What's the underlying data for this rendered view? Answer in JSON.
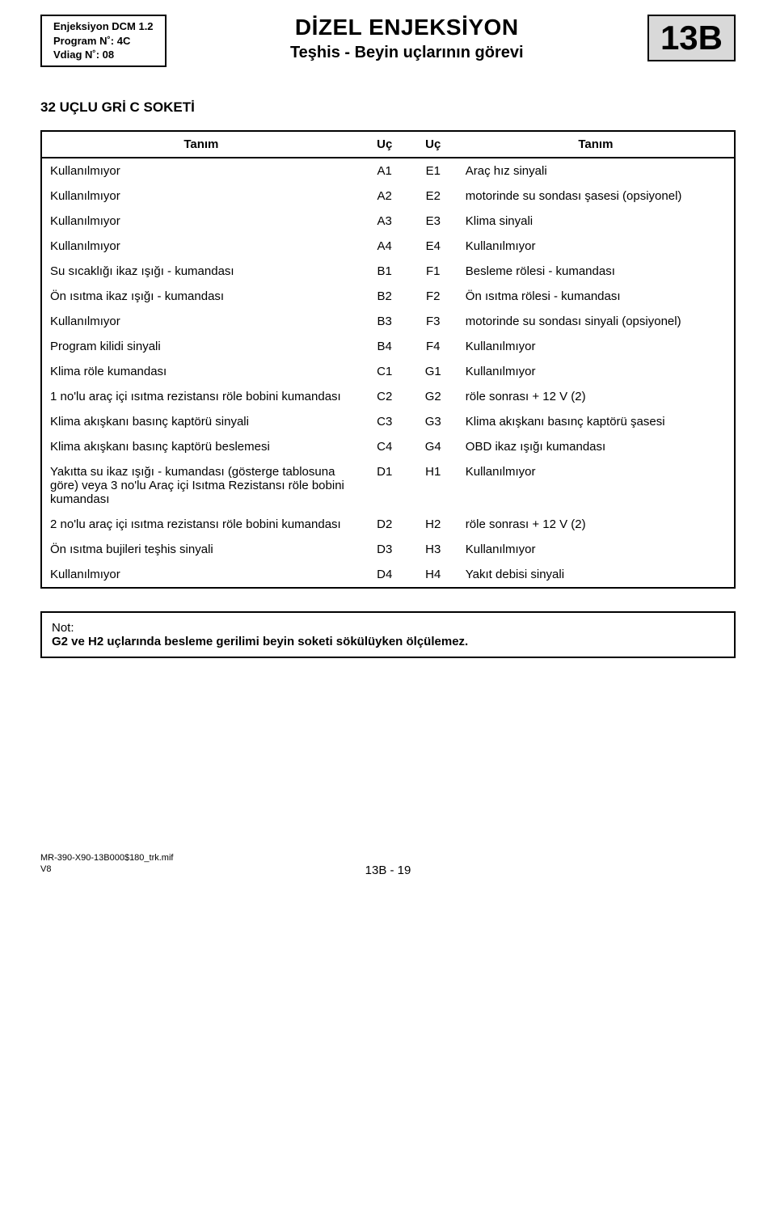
{
  "header": {
    "info_box": "Enjeksiyon DCM 1.2\nProgram N˚: 4C\nVdiag N˚: 08",
    "main_title": "DİZEL ENJEKSİYON",
    "sub_title": "Teşhis - Beyin uçlarının görevi",
    "code": "13B"
  },
  "section_heading": "32 UÇLU GRİ C SOKETİ",
  "table": {
    "headers": [
      "Tanım",
      "Uç",
      "Uç",
      "Tanım"
    ],
    "rows": [
      [
        "Kullanılmıyor",
        "A1",
        "E1",
        "Araç hız sinyali"
      ],
      [
        "Kullanılmıyor",
        "A2",
        "E2",
        "motorinde su sondası şasesi (opsiyonel)"
      ],
      [
        "Kullanılmıyor",
        "A3",
        "E3",
        "Klima sinyali"
      ],
      [
        "Kullanılmıyor",
        "A4",
        "E4",
        "Kullanılmıyor"
      ],
      [
        "Su sıcaklığı ikaz ışığı - kumandası",
        "B1",
        "F1",
        "Besleme rölesi - kumandası"
      ],
      [
        "Ön ısıtma ikaz ışığı - kumandası",
        "B2",
        "F2",
        "Ön ısıtma rölesi - kumandası"
      ],
      [
        "Kullanılmıyor",
        "B3",
        "F3",
        "motorinde su sondası sinyali (opsiyonel)"
      ],
      [
        "Program kilidi sinyali",
        "B4",
        "F4",
        "Kullanılmıyor"
      ],
      [
        "Klima röle kumandası",
        "C1",
        "G1",
        "Kullanılmıyor"
      ],
      [
        "1 no'lu araç içi ısıtma rezistansı röle bobini kumandası",
        "C2",
        "G2",
        "röle sonrası + 12 V (2)"
      ],
      [
        "Klima akışkanı basınç kaptörü sinyali",
        "C3",
        "G3",
        "Klima akışkanı basınç kaptörü şasesi"
      ],
      [
        "Klima akışkanı basınç kaptörü beslemesi",
        "C4",
        "G4",
        "OBD ikaz ışığı kumandası"
      ],
      [
        "Yakıtta su ikaz ışığı - kumandası (gösterge tablosuna göre) veya 3 no'lu Araç içi Isıtma Rezistansı röle bobini kumandası",
        "D1",
        "H1",
        "Kullanılmıyor"
      ],
      [
        "2 no'lu araç içi ısıtma rezistansı röle bobini kumandası",
        "D2",
        "H2",
        "röle sonrası + 12 V (2)"
      ],
      [
        "Ön ısıtma bujileri teşhis sinyali",
        "D3",
        "H3",
        "Kullanılmıyor"
      ],
      [
        "Kullanılmıyor",
        "D4",
        "H4",
        "Yakıt debisi sinyali"
      ]
    ]
  },
  "note": {
    "label": "Not:",
    "text": "G2 ve H2 uçlarında besleme gerilimi beyin soketi sökülüyken ölçülemez."
  },
  "footer": {
    "ref1": "MR-390-X90-13B000$180_trk.mif",
    "ref2": "V8",
    "page": "13B - 19"
  }
}
